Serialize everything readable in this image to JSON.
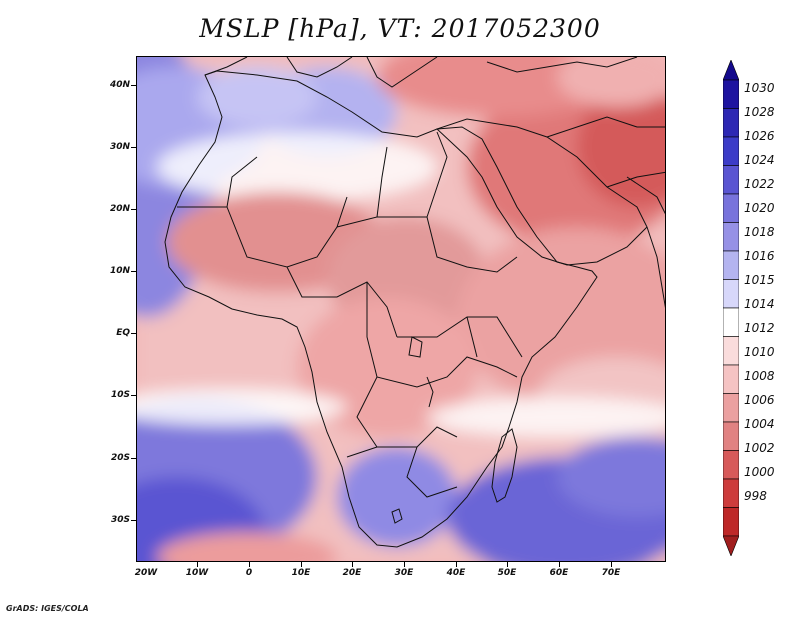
{
  "title": "MSLP [hPa], VT: 2017052300",
  "credit": "GrADS: IGES/COLA",
  "axes": {
    "lat_labels": [
      "40N",
      "30N",
      "20N",
      "10N",
      "EQ",
      "10S",
      "20S",
      "30S"
    ],
    "lon_labels": [
      "20W",
      "10W",
      "0",
      "10E",
      "20E",
      "30E",
      "40E",
      "50E",
      "60E",
      "70E"
    ]
  },
  "colorbar": {
    "levels": [
      "1030",
      "1028",
      "1026",
      "1024",
      "1022",
      "1020",
      "1018",
      "1016",
      "1015",
      "1014",
      "1012",
      "1010",
      "1008",
      "1006",
      "1004",
      "1002",
      "1000",
      "998"
    ],
    "colors": [
      "#140a8c",
      "#1e14a0",
      "#2d28b4",
      "#3c3cc8",
      "#5a55d2",
      "#7873dc",
      "#9691e6",
      "#b4b4f0",
      "#d7d7fa",
      "#ffffff",
      "#fadcdc",
      "#f5c3c3",
      "#eba0a0",
      "#e18282",
      "#d75a5a",
      "#cd3c3c",
      "#be2828",
      "#a01e1e"
    ]
  }
}
